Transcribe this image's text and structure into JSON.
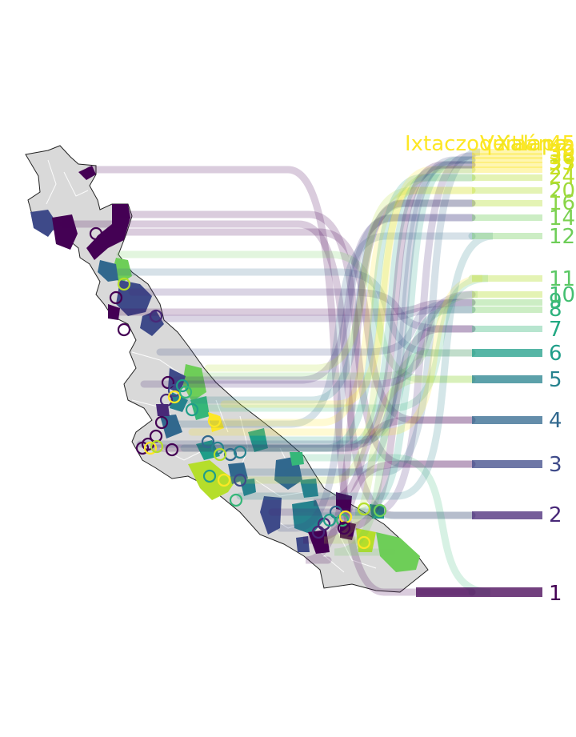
{
  "colors": {
    "land": "#d9d9d9",
    "border": "#ffffff",
    "palette": [
      "#440154",
      "#482878",
      "#3e4a89",
      "#31688e",
      "#26828e",
      "#1f9e89",
      "#35b779",
      "#6ece58",
      "#b5de2b",
      "#fde725"
    ]
  },
  "rank_labels": {
    "r1": "1",
    "r2": "2",
    "r3": "3",
    "r4": "4",
    "r5": "5",
    "r6": "6",
    "r7": "7",
    "r8": "8",
    "r9": "9",
    "r10": "10",
    "r11": "11",
    "r12": "12",
    "r14": "14",
    "r16": "16",
    "r20": "20",
    "r24": "24",
    "r27": "27",
    "r33": "33",
    "r36": "36",
    "r39": "39",
    "r42": "42",
    "r45": "45"
  },
  "top_labels": {
    "first": "Ixtaczoquitlán",
    "second": "Veracruz",
    "third": "Xalapa"
  }
}
